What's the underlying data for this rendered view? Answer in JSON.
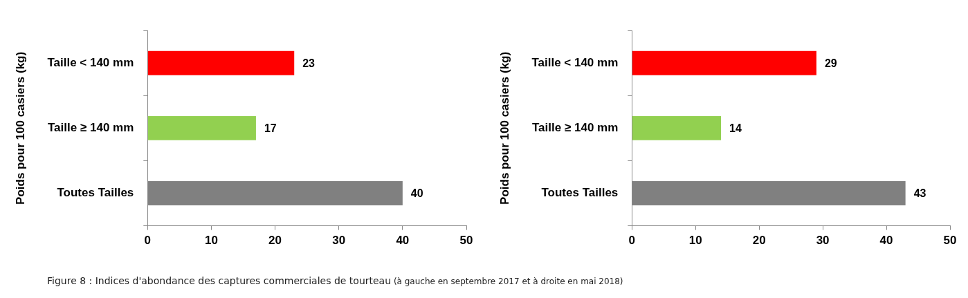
{
  "chart_data": [
    {
      "type": "bar",
      "orientation": "horizontal",
      "ylabel": "Poids pour 100 casiers (kg)",
      "categories": [
        "Taille < 140 mm",
        "Taille ≥ 140 mm",
        "Toutes Tailles"
      ],
      "values": [
        23,
        17,
        40
      ],
      "colors": [
        "#ff0000",
        "#92d050",
        "#808080"
      ],
      "xlim": [
        0,
        50
      ],
      "xticks": [
        0,
        10,
        20,
        30,
        40,
        50
      ],
      "data_labels": true,
      "grid": false,
      "legend": false,
      "annotations": [
        "Figure 8 : Indices d'abondance des captures commerciales de tourteau",
        "(à gauche en septembre 2017 et à droite en mai 2018)"
      ]
    },
    {
      "type": "bar",
      "orientation": "horizontal",
      "ylabel": "Poids pour 100 casiers (kg)",
      "categories": [
        "Taille < 140 mm",
        "Taille ≥ 140 mm",
        "Toutes Tailles"
      ],
      "values": [
        29,
        14,
        43
      ],
      "colors": [
        "#ff0000",
        "#92d050",
        "#808080"
      ],
      "xlim": [
        0,
        50
      ],
      "xticks": [
        0,
        10,
        20,
        30,
        40,
        50
      ],
      "data_labels": true,
      "grid": false,
      "legend": false
    }
  ]
}
